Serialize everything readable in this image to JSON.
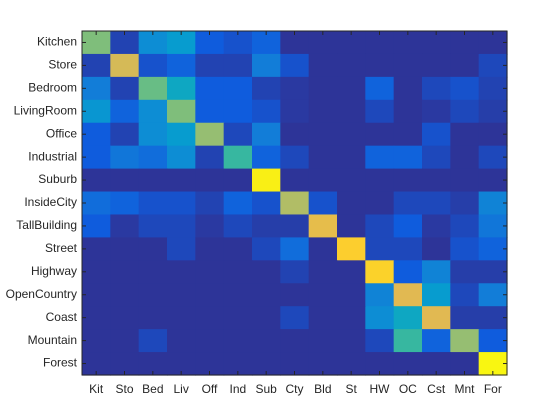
{
  "chart_data": {
    "type": "heatmap",
    "title": "",
    "xlabel": "",
    "ylabel": "",
    "colormap": "parula",
    "clim": [
      0,
      1
    ],
    "grid": false,
    "row_labels": [
      "Kitchen",
      "Store",
      "Bedroom",
      "LivingRoom",
      "Office",
      "Industrial",
      "Suburb",
      "InsideCity",
      "TallBuilding",
      "Street",
      "Highway",
      "OpenCountry",
      "Coast",
      "Mountain",
      "Forest"
    ],
    "col_labels": [
      "Kit",
      "Sto",
      "Bed",
      "Liv",
      "Off",
      "Ind",
      "Sub",
      "Cty",
      "Bld",
      "St",
      "HW",
      "OC",
      "Cst",
      "Mnt",
      "For"
    ],
    "values": [
      [
        0.55,
        0.05,
        0.25,
        0.3,
        0.1,
        0.08,
        0.12,
        0.02,
        0.02,
        0.02,
        0.02,
        0.02,
        0.02,
        0.02,
        0.02
      ],
      [
        0.05,
        0.68,
        0.08,
        0.12,
        0.05,
        0.05,
        0.2,
        0.08,
        0.02,
        0.02,
        0.02,
        0.02,
        0.02,
        0.02,
        0.06
      ],
      [
        0.2,
        0.05,
        0.52,
        0.35,
        0.1,
        0.1,
        0.05,
        0.03,
        0.02,
        0.02,
        0.12,
        0.02,
        0.06,
        0.08,
        0.05
      ],
      [
        0.28,
        0.12,
        0.25,
        0.55,
        0.1,
        0.1,
        0.08,
        0.03,
        0.02,
        0.02,
        0.06,
        0.02,
        0.03,
        0.06,
        0.04
      ],
      [
        0.1,
        0.05,
        0.25,
        0.3,
        0.58,
        0.06,
        0.2,
        0.02,
        0.02,
        0.02,
        0.02,
        0.02,
        0.08,
        0.02,
        0.02
      ],
      [
        0.1,
        0.18,
        0.15,
        0.25,
        0.05,
        0.45,
        0.12,
        0.06,
        0.02,
        0.02,
        0.12,
        0.12,
        0.06,
        0.02,
        0.06
      ],
      [
        0.02,
        0.02,
        0.02,
        0.02,
        0.02,
        0.02,
        0.95,
        0.02,
        0.02,
        0.02,
        0.02,
        0.02,
        0.02,
        0.02,
        0.02
      ],
      [
        0.15,
        0.12,
        0.08,
        0.08,
        0.05,
        0.12,
        0.08,
        0.62,
        0.08,
        0.02,
        0.02,
        0.06,
        0.06,
        0.04,
        0.22
      ],
      [
        0.1,
        0.03,
        0.06,
        0.06,
        0.03,
        0.06,
        0.04,
        0.04,
        0.72,
        0.02,
        0.06,
        0.1,
        0.03,
        0.06,
        0.18
      ],
      [
        0.02,
        0.02,
        0.02,
        0.06,
        0.02,
        0.02,
        0.06,
        0.15,
        0.02,
        0.8,
        0.06,
        0.06,
        0.02,
        0.08,
        0.12
      ],
      [
        0.02,
        0.02,
        0.02,
        0.02,
        0.02,
        0.02,
        0.02,
        0.05,
        0.02,
        0.02,
        0.82,
        0.1,
        0.22,
        0.04,
        0.04
      ],
      [
        0.02,
        0.02,
        0.02,
        0.02,
        0.02,
        0.02,
        0.02,
        0.02,
        0.02,
        0.02,
        0.22,
        0.7,
        0.3,
        0.06,
        0.2
      ],
      [
        0.02,
        0.02,
        0.02,
        0.02,
        0.02,
        0.02,
        0.02,
        0.06,
        0.02,
        0.02,
        0.25,
        0.35,
        0.7,
        0.04,
        0.04
      ],
      [
        0.02,
        0.02,
        0.06,
        0.02,
        0.02,
        0.02,
        0.02,
        0.02,
        0.02,
        0.02,
        0.06,
        0.45,
        0.12,
        0.58,
        0.1
      ],
      [
        0.02,
        0.02,
        0.02,
        0.02,
        0.02,
        0.02,
        0.02,
        0.02,
        0.02,
        0.02,
        0.02,
        0.02,
        0.02,
        0.02,
        0.98
      ]
    ],
    "colors": {
      "axis": "#262626",
      "background": "#ffffff"
    }
  }
}
